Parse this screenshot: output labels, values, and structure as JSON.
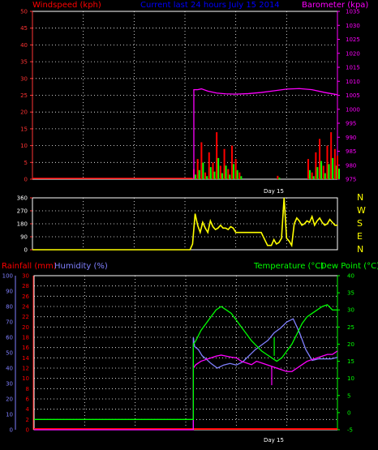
{
  "header": {
    "wind_label": "Windspeed (kph)",
    "title": "Current last 24 hours July 15 2014",
    "baro_label": "Barometer (kpa)"
  },
  "middle": {
    "compass": [
      "N",
      "W",
      "S",
      "E",
      "N"
    ]
  },
  "lower_header": {
    "rain_label": "Rainfall (mm)",
    "humidity_label": "Humidity (%)",
    "temp_label": "Temperature (°C)",
    "dew_label": "Dew Point (°C)"
  },
  "day_label": "Day 15",
  "colors": {
    "wind": "#ff0000",
    "gust_bar": "#ff0000",
    "avg_bar": "#00ff00",
    "baro": "#ff00ff",
    "direction": "#ffff00",
    "rain": "#ff0000",
    "humidity": "#8080ff",
    "temperature": "#00ff00",
    "dew": "#ff00ff",
    "grid": "#ffffff",
    "axis_red": "#ff3333"
  },
  "chart_data": [
    {
      "type": "line",
      "title": "Current last 24 hours July 15 2014",
      "xlabel": "Day 15",
      "ylabel": "Windspeed (kph)",
      "ylim": [
        0,
        50
      ],
      "yticks": [
        0,
        5,
        10,
        15,
        20,
        25,
        30,
        35,
        40,
        45,
        50
      ],
      "y2label": "Barometer (kpa)",
      "y2lim": [
        975,
        1035
      ],
      "y2ticks": [
        975,
        980,
        985,
        990,
        995,
        1000,
        1005,
        1010,
        1015,
        1020,
        1025,
        1030,
        1035
      ],
      "x_hours": [
        0,
        24
      ],
      "series": [
        {
          "name": "Barometer (kpa)",
          "axis": "right",
          "x": [
            12.7,
            13.0,
            13.3,
            13.8,
            14.5,
            15.2,
            16,
            17,
            18,
            19,
            20,
            21,
            22,
            23,
            24
          ],
          "y": [
            1007,
            1007,
            1007.3,
            1006.5,
            1005.8,
            1005.5,
            1005.4,
            1005.6,
            1006,
            1006.6,
            1007.2,
            1007.4,
            1007,
            1006,
            1005.2
          ]
        },
        {
          "name": "Windspeed (kph)",
          "axis": "left",
          "x": [
            0,
            12.6,
            12.7,
            13.0,
            13.3,
            13.6,
            13.9,
            14.2,
            14.5,
            14.8,
            15.1,
            15.4,
            15.7,
            16.0,
            16.3,
            16.6,
            16.9,
            17.2,
            17.5,
            17.8,
            18.1,
            18.4,
            18.7,
            19.0,
            19.3,
            19.6,
            19.9,
            20.2,
            20.5,
            20.8,
            21.1,
            21.4,
            21.7,
            22.0,
            22.3,
            22.6,
            22.9,
            23.2,
            23.5,
            23.8,
            24.0
          ],
          "y": [
            0,
            0,
            3,
            6,
            11,
            2,
            8,
            5,
            14,
            4,
            9,
            3,
            10,
            6,
            2,
            0,
            0,
            0,
            0,
            0,
            0,
            0,
            0,
            0,
            1,
            0,
            0,
            0,
            0,
            0,
            0,
            0,
            6,
            2,
            8,
            12,
            4,
            10,
            14,
            9,
            7
          ]
        }
      ]
    },
    {
      "type": "scatter",
      "ylabel": "Wind direction",
      "ylim": [
        0,
        360
      ],
      "yticks": [
        0,
        90,
        180,
        270,
        360
      ],
      "x_hours": [
        0,
        24
      ],
      "series": [
        {
          "name": "direction",
          "x": [
            0,
            12.4,
            12.6,
            12.8,
            13.0,
            13.2,
            13.4,
            13.6,
            13.8,
            14.0,
            14.2,
            14.4,
            14.6,
            14.8,
            15.0,
            15.2,
            15.4,
            15.6,
            15.8,
            16.0,
            16.2,
            16.4,
            16.6,
            17.0,
            17.5,
            18.0,
            18.5,
            18.8,
            19.0,
            19.2,
            19.4,
            19.6,
            19.8,
            20.0,
            20.2,
            20.4,
            20.6,
            20.8,
            21.0,
            21.2,
            21.4,
            21.6,
            21.8,
            22.0,
            22.2,
            22.4,
            22.6,
            22.8,
            23.0,
            23.2,
            23.4,
            23.6,
            23.8,
            24.0
          ],
          "y": [
            0,
            0,
            40,
            250,
            170,
            120,
            190,
            150,
            120,
            200,
            160,
            140,
            150,
            170,
            150,
            150,
            140,
            160,
            150,
            120,
            120,
            120,
            120,
            120,
            120,
            120,
            30,
            30,
            70,
            40,
            50,
            80,
            360,
            80,
            60,
            30,
            180,
            220,
            200,
            170,
            180,
            200,
            190,
            230,
            170,
            200,
            220,
            190,
            170,
            180,
            210,
            190,
            170,
            170
          ]
        }
      ]
    },
    {
      "type": "line",
      "xlabel": "Day 15",
      "ylabel": "Rainfall (mm)",
      "ylim": [
        0,
        30
      ],
      "yticks": [
        0,
        2,
        4,
        6,
        8,
        10,
        12,
        14,
        16,
        18,
        20,
        22,
        24,
        26,
        28,
        30
      ],
      "humidity_ylim": [
        0,
        100
      ],
      "humidity_ticks": [
        0,
        10,
        20,
        30,
        40,
        50,
        60,
        70,
        80,
        90,
        100
      ],
      "y2label": "Temperature (°C)",
      "y2lim": [
        -5,
        40
      ],
      "y2ticks": [
        -5,
        0,
        5,
        10,
        15,
        20,
        25,
        30,
        35,
        40
      ],
      "x_hours": [
        0,
        24
      ],
      "series": [
        {
          "name": "Rainfall (mm)",
          "axis": "rain",
          "x": [
            0,
            24
          ],
          "y": [
            0,
            0
          ]
        },
        {
          "name": "Humidity (%)",
          "axis": "humidity",
          "x": [
            0,
            12.6,
            12.6,
            12.7,
            13.0,
            13.3,
            13.6,
            14.0,
            14.5,
            15.0,
            15.5,
            16.0,
            16.5,
            17.0,
            17.5,
            18.0,
            18.5,
            19.0,
            19.5,
            20.0,
            20.5,
            21.0,
            21.5,
            22.0,
            22.5,
            23.0,
            23.5,
            24.0
          ],
          "y": [
            0,
            0,
            60,
            54,
            52,
            48,
            46,
            43,
            40,
            42,
            43,
            42,
            44,
            48,
            52,
            55,
            58,
            63,
            66,
            70,
            72,
            63,
            52,
            45,
            46,
            46,
            46,
            47
          ]
        },
        {
          "name": "Temperature (°C)",
          "axis": "right",
          "x": [
            0,
            12.6,
            12.6,
            12.8,
            13.2,
            13.6,
            14.0,
            14.4,
            14.8,
            15.2,
            15.6,
            16.0,
            16.4,
            16.8,
            17.2,
            17.6,
            18.0,
            18.4,
            18.8,
            19.2,
            19.6,
            20.0,
            20.4,
            20.8,
            21.2,
            21.6,
            22.0,
            22.4,
            22.8,
            23.2,
            23.6,
            24.0
          ],
          "y": [
            -2,
            -2,
            20,
            21,
            24,
            26,
            28,
            30,
            31,
            30,
            29,
            27,
            25,
            23,
            21,
            19.5,
            18,
            17,
            16,
            15,
            16,
            18,
            20,
            23,
            26,
            28,
            29,
            30,
            31,
            31.5,
            30,
            30
          ]
        },
        {
          "name": "Dew Point (°C)",
          "axis": "right",
          "x": [
            0,
            12.6,
            12.6,
            12.8,
            13.2,
            13.6,
            14.0,
            14.4,
            14.8,
            15.2,
            15.6,
            16.0,
            16.4,
            16.8,
            17.2,
            17.6,
            18.0,
            18.4,
            18.8,
            19.2,
            19.6,
            20.0,
            20.4,
            20.8,
            21.2,
            21.6,
            22.0,
            22.4,
            22.8,
            23.2,
            23.6,
            24.0
          ],
          "y": [
            -5,
            -5,
            13,
            14,
            15,
            15.5,
            16,
            16.5,
            16.8,
            16.5,
            16.2,
            16,
            15,
            14.5,
            14,
            15,
            14.5,
            14,
            13.5,
            13,
            12.5,
            12,
            12,
            13,
            14,
            15,
            15.5,
            16,
            16.5,
            17,
            17,
            18
          ]
        }
      ]
    }
  ]
}
